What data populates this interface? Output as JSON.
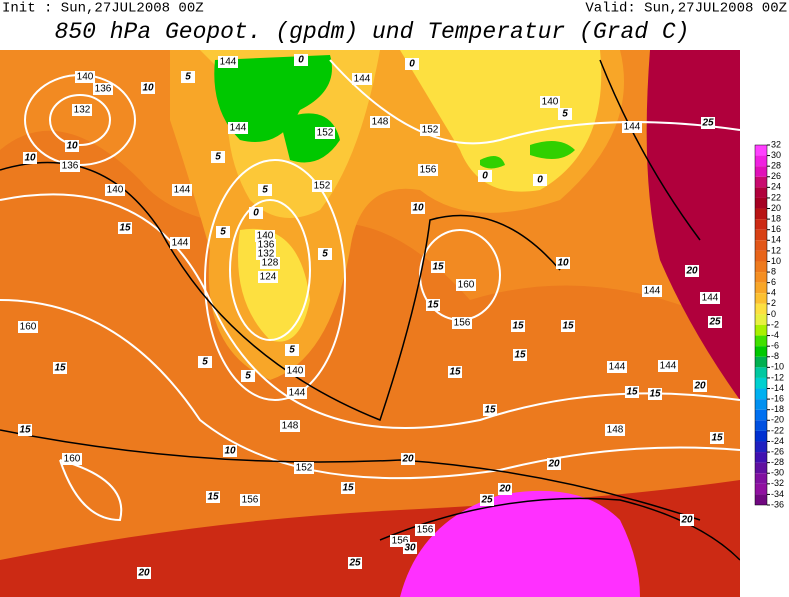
{
  "header": {
    "init": "Init : Sun,27JUL2008 00Z",
    "valid": "Valid: Sun,27JUL2008 00Z",
    "title": "850 hPa Geopot. (gpdm) und Temperatur (Grad C)"
  },
  "colorbar": {
    "levels": [
      32,
      30,
      28,
      26,
      24,
      22,
      20,
      18,
      16,
      14,
      12,
      10,
      8,
      6,
      4,
      2,
      0,
      -2,
      -4,
      -6,
      -8,
      -10,
      -12,
      -14,
      -16,
      -18,
      -20,
      -22,
      -24,
      -26,
      -28,
      -30,
      -32,
      -34,
      -36
    ],
    "colors": [
      "#ff40ff",
      "#f020e0",
      "#e010b8",
      "#c80a6e",
      "#b0003c",
      "#a50022",
      "#b81414",
      "#cc2a14",
      "#d84014",
      "#e25618",
      "#e8641a",
      "#ee7a1e",
      "#f48e22",
      "#f8a628",
      "#fcc030",
      "#fde040",
      "#e8f040",
      "#a8f000",
      "#40e000",
      "#00c800",
      "#00b050",
      "#00c8a0",
      "#00d0d0",
      "#00b0f0",
      "#0090f0",
      "#0070f0",
      "#0050e0",
      "#0030d0",
      "#2020c0",
      "#4010b0",
      "#6010a0",
      "#8010a0",
      "#9010a0",
      "#700880"
    ]
  },
  "geopotential_labels": [
    "140",
    "136",
    "132",
    "136",
    "140",
    "144",
    "144",
    "144",
    "144",
    "152",
    "152",
    "144",
    "148",
    "152",
    "156",
    "140",
    "144",
    "140",
    "136",
    "132",
    "128",
    "124",
    "160",
    "156",
    "140",
    "144",
    "148",
    "152",
    "156",
    "160",
    "160",
    "156",
    "156",
    "144",
    "144",
    "144",
    "148",
    "144"
  ],
  "temperature_labels": [
    "10",
    "10",
    "10",
    "15",
    "15",
    "15",
    "10",
    "15",
    "15",
    "20",
    "20",
    "25",
    "20",
    "20",
    "20",
    "25",
    "30",
    "15",
    "15",
    "15",
    "15",
    "15",
    "15",
    "15",
    "15",
    "15",
    "15",
    "10",
    "10",
    "5",
    "5",
    "5",
    "5",
    "5",
    "5",
    "0",
    "5",
    "0",
    "0",
    "0",
    "5",
    "20",
    "25",
    "25",
    "20",
    "0",
    "5"
  ]
}
